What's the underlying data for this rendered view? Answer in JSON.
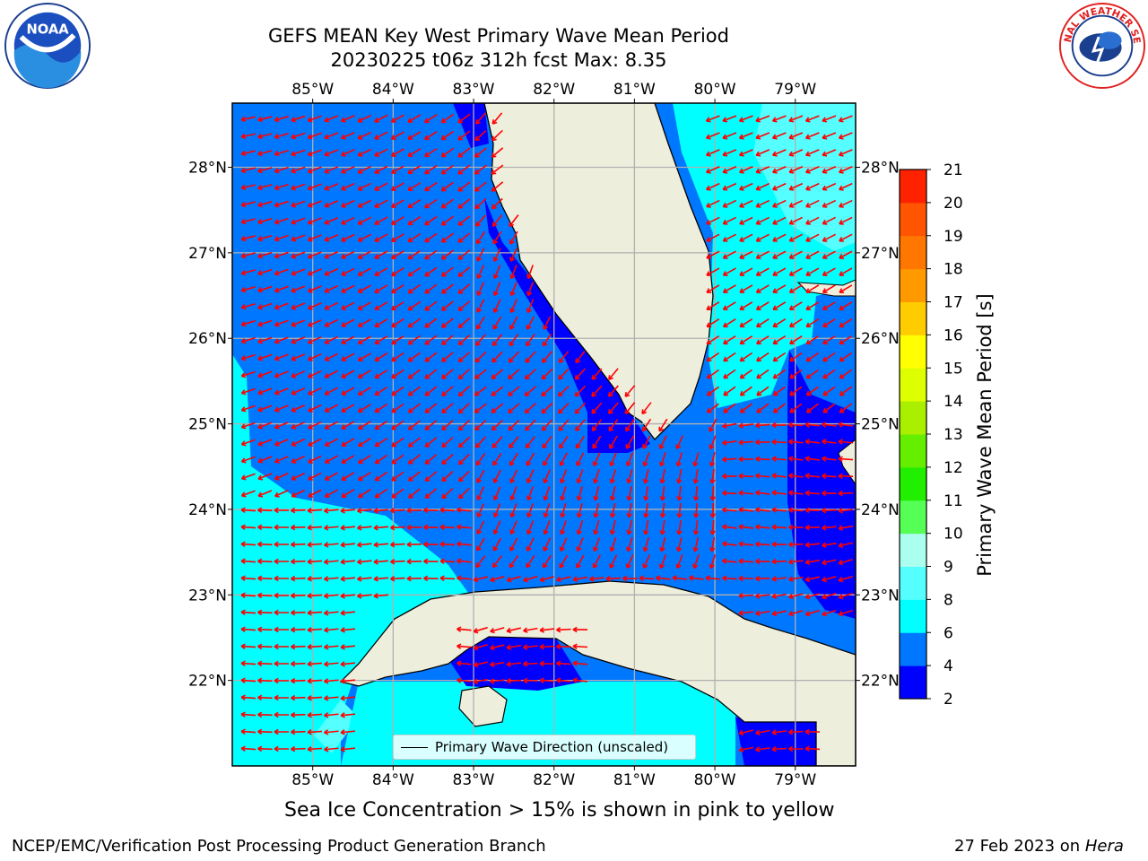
{
  "title": {
    "line1": "GEFS MEAN Key West Primary Wave Mean Period",
    "line2": "20230225 t06z 312h fcst   Max: 8.35"
  },
  "logos": {
    "left": "noaa-logo",
    "right": "nws-logo",
    "left_text": "NOAA",
    "right_text": "NATIONAL WEATHER SERVICE"
  },
  "axes": {
    "lon_labels": [
      "85°W",
      "84°W",
      "83°W",
      "82°W",
      "81°W",
      "80°W",
      "79°W"
    ],
    "lat_labels": [
      "28°N",
      "27°N",
      "26°N",
      "25°N",
      "24°N",
      "23°N",
      "22°N"
    ],
    "lon_range": [
      -86.0,
      -78.25
    ],
    "lat_range": [
      21.0,
      28.75
    ],
    "grid": true
  },
  "legend": {
    "label": "Primary Wave Direction (unscaled)"
  },
  "colorbar": {
    "title": "Primary Wave Mean Period [s]",
    "ticks": [
      "21",
      "20",
      "19",
      "18",
      "17",
      "16",
      "15",
      "14",
      "13",
      "12",
      "11",
      "10",
      "9",
      "8",
      "6",
      "4",
      "2"
    ],
    "colors": [
      "#0000ff",
      "#0077ff",
      "#00ffff",
      "#55ffff",
      "#aaffee",
      "#55ff55",
      "#22ee00",
      "#66ee00",
      "#aaee00",
      "#ddff00",
      "#ffff00",
      "#ffcc00",
      "#ff9900",
      "#ff7700",
      "#ff5500",
      "#ff2200",
      "#ff0000"
    ]
  },
  "note": "Sea Ice Concentration > 15% is shown in pink to yellow",
  "footer": {
    "left": "NCEP/EMC/Verification Post Processing Product Generation Branch",
    "right_date": "27 Feb 2023 on ",
    "right_host": "Hera"
  },
  "colors": {
    "land": "#eeeedd",
    "deep_blue": "#0000ff",
    "mid_blue": "#0077ff",
    "cyan": "#00ffff",
    "light_cyan": "#55ffff",
    "arrow": "#ff0000",
    "grid": "#b0b0b0"
  }
}
